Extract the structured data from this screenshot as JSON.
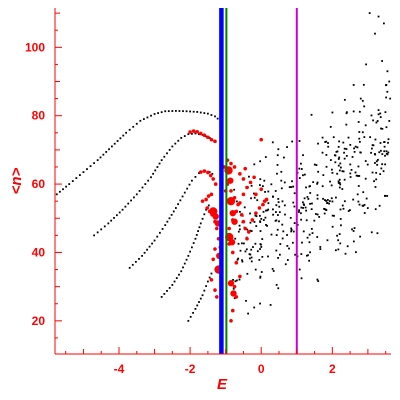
{
  "chart_data": {
    "type": "scatter",
    "title": "",
    "xlabel": "E",
    "ylabel": "<n>",
    "xlim": [
      -5.8,
      3.65
    ],
    "ylim": [
      10.3,
      111.5
    ],
    "x_ticks": [
      -4,
      -2,
      0,
      2
    ],
    "y_ticks": [
      20,
      40,
      60,
      80,
      100
    ],
    "grid": false,
    "colors": {
      "axes": "#ff0000",
      "black_points": "#000000",
      "red_points": "#ff0000",
      "line_blue": "#0000ff",
      "line_green": "#008000",
      "line_magenta": "#cc00cc"
    },
    "vertical_lines": [
      {
        "x": -1.12,
        "color": "#0000ff",
        "width": "thick"
      },
      {
        "x": -0.98,
        "color": "#008000",
        "width": "medium"
      },
      {
        "x": 1.0,
        "color": "#cc00cc",
        "width": "medium"
      }
    ],
    "black_curves": [
      {
        "points": [
          [
            -5.75,
            57
          ],
          [
            -5.4,
            60
          ],
          [
            -5.0,
            63.5
          ],
          [
            -4.6,
            67
          ],
          [
            -4.2,
            71
          ],
          [
            -3.8,
            75
          ],
          [
            -3.4,
            78.5
          ],
          [
            -3.0,
            80.5
          ],
          [
            -2.7,
            81.3
          ],
          [
            -2.4,
            81.4
          ],
          [
            -2.1,
            81.3
          ],
          [
            -1.8,
            81.1
          ],
          [
            -1.5,
            80.6
          ],
          [
            -1.3,
            79.8
          ],
          [
            -1.15,
            78.5
          ],
          [
            -1.05,
            76.5
          ]
        ]
      },
      {
        "points": [
          [
            -4.7,
            45
          ],
          [
            -4.3,
            48.5
          ],
          [
            -3.9,
            52.5
          ],
          [
            -3.5,
            57
          ],
          [
            -3.1,
            62
          ],
          [
            -2.8,
            67
          ],
          [
            -2.5,
            71
          ],
          [
            -2.25,
            73.5
          ],
          [
            -2.05,
            74.6
          ],
          [
            -1.85,
            74.8
          ],
          [
            -1.65,
            74.4
          ],
          [
            -1.45,
            73.5
          ],
          [
            -1.3,
            72.2
          ]
        ]
      },
      {
        "points": [
          [
            -3.7,
            35.5
          ],
          [
            -3.35,
            39
          ],
          [
            -3.0,
            43.5
          ],
          [
            -2.7,
            48
          ],
          [
            -2.4,
            53
          ],
          [
            -2.15,
            57.5
          ],
          [
            -1.95,
            61
          ],
          [
            -1.75,
            63.2
          ],
          [
            -1.6,
            63.8
          ],
          [
            -1.45,
            63.5
          ],
          [
            -1.3,
            62.5
          ]
        ]
      },
      {
        "points": [
          [
            -2.8,
            27
          ],
          [
            -2.5,
            30.5
          ],
          [
            -2.25,
            34.5
          ],
          [
            -2.05,
            39
          ],
          [
            -1.85,
            44
          ],
          [
            -1.7,
            48.5
          ],
          [
            -1.55,
            52.5
          ],
          [
            -1.4,
            55
          ]
        ]
      },
      {
        "points": [
          [
            -2.05,
            20
          ],
          [
            -1.85,
            23.5
          ],
          [
            -1.65,
            27.5
          ],
          [
            -1.5,
            31.5
          ],
          [
            -1.35,
            35
          ]
        ]
      }
    ],
    "black_scatter": {
      "x_range": [
        -0.8,
        3.65
      ],
      "y_center_at_x0": 47,
      "y_slope": 6.5,
      "y_spread": 10,
      "count": 430,
      "outliers": [
        [
          3.05,
          110
        ],
        [
          3.3,
          109
        ],
        [
          3.45,
          107
        ],
        [
          3.2,
          104
        ],
        [
          2.95,
          95
        ],
        [
          3.4,
          96
        ],
        [
          3.6,
          90
        ],
        [
          2.6,
          89
        ],
        [
          2.8,
          85
        ],
        [
          3.55,
          93
        ]
      ]
    },
    "red_points": [
      [
        -2.0,
        75.2
      ],
      [
        -1.9,
        75.5
      ],
      [
        -1.8,
        75.3
      ],
      [
        -1.7,
        74.8
      ],
      [
        -1.6,
        74.3
      ],
      [
        -1.5,
        73.7
      ],
      [
        -1.4,
        73
      ],
      [
        -1.3,
        72.5
      ],
      [
        -1.7,
        63.5
      ],
      [
        -1.6,
        63.8
      ],
      [
        -1.5,
        63.4
      ],
      [
        -1.42,
        62.5
      ],
      [
        -1.35,
        61.5
      ],
      [
        -1.28,
        60
      ],
      [
        -1.65,
        55
      ],
      [
        -1.55,
        55.5
      ],
      [
        -1.48,
        56.5
      ],
      [
        -1.4,
        57
      ],
      [
        -1.52,
        53
      ],
      [
        -1.45,
        52
      ],
      [
        -1.38,
        51
      ],
      [
        -1.3,
        49
      ],
      [
        -1.25,
        47
      ],
      [
        -1.2,
        44
      ],
      [
        -1.15,
        41.5
      ],
      [
        -1.3,
        41
      ],
      [
        -1.35,
        38
      ],
      [
        -1.4,
        32
      ],
      [
        -1.3,
        29
      ],
      [
        -1.25,
        27
      ],
      [
        -0.95,
        60
      ],
      [
        -0.85,
        58
      ],
      [
        -0.75,
        56
      ],
      [
        -0.65,
        54
      ],
      [
        -0.55,
        51
      ],
      [
        -0.5,
        49
      ],
      [
        -0.45,
        47
      ],
      [
        -0.4,
        44
      ],
      [
        -0.9,
        47
      ],
      [
        -0.8,
        49.5
      ],
      [
        -0.7,
        52
      ],
      [
        -0.6,
        54.5
      ],
      [
        -0.5,
        57
      ],
      [
        -0.4,
        59
      ],
      [
        -0.3,
        60.5
      ],
      [
        -0.2,
        62
      ],
      [
        -0.25,
        49.5
      ],
      [
        -0.15,
        51.5
      ],
      [
        -0.05,
        53
      ],
      [
        0.05,
        54
      ],
      [
        0.15,
        55.5
      ],
      [
        -0.9,
        42.5
      ],
      [
        -0.8,
        40
      ],
      [
        -0.7,
        37
      ],
      [
        -0.6,
        33
      ],
      [
        -0.75,
        30
      ],
      [
        -0.7,
        27
      ],
      [
        -0.8,
        23
      ],
      [
        -0.85,
        20
      ],
      [
        -1.05,
        65
      ],
      [
        -0.95,
        67
      ],
      [
        -0.85,
        66
      ],
      [
        -0.75,
        65
      ],
      [
        -0.6,
        63
      ],
      [
        -0.5,
        61.5
      ],
      [
        -0.45,
        64.5
      ],
      [
        -0.15,
        57
      ],
      [
        0.0,
        58.5
      ],
      [
        0.1,
        55
      ],
      [
        -0.35,
        46
      ],
      [
        0.0,
        73
      ],
      [
        -1.0,
        58
      ],
      [
        -0.9,
        55
      ]
    ],
    "red_big_points": [
      [
        -1.35,
        52
      ],
      [
        -1.28,
        50.5
      ],
      [
        -1.22,
        48.5
      ],
      [
        -0.85,
        55
      ],
      [
        -0.8,
        51.5
      ],
      [
        -0.75,
        49
      ],
      [
        -0.9,
        44.5
      ],
      [
        -0.82,
        43
      ],
      [
        -1.18,
        39
      ],
      [
        -1.2,
        35
      ],
      [
        -0.85,
        31
      ],
      [
        -0.78,
        28
      ],
      [
        -0.92,
        64
      ],
      [
        -0.87,
        61
      ]
    ]
  }
}
